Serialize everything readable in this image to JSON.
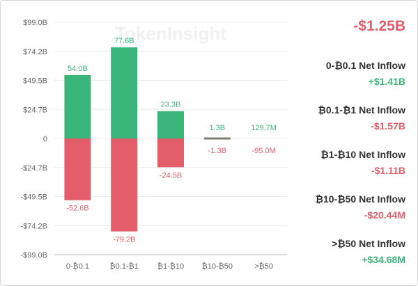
{
  "watermark": "TokenInsight",
  "colors": {
    "inflow": "#3bb67a",
    "outflow": "#e35d6a",
    "net": "#7a7f70",
    "grid": "#ececec",
    "axis_text": "#666666"
  },
  "chart_data": {
    "type": "bar",
    "categories": [
      "0-₿0.1",
      "₿0.1-₿1",
      "₿1-₿10",
      "₿10-₿50",
      ">₿50"
    ],
    "series": [
      {
        "values": [
          54.0,
          77.6,
          23.3,
          1.3,
          0.1297
        ],
        "labels": [
          "54.0B",
          "77.6B",
          "23.3B",
          "1.3B",
          "129.7M"
        ]
      },
      {
        "values": [
          -52.6,
          -79.2,
          -24.5,
          -1.3,
          -0.095
        ],
        "labels": [
          "-52.6B",
          "-79.2B",
          "-24.5B",
          "-1.3B",
          "-95.0M"
        ]
      }
    ],
    "yticks": [
      "$99.0B",
      "$74.2B",
      "$49.5B",
      "$24.7B",
      "0",
      "-$24.7B",
      "-$49.5B",
      "-$74.2B",
      "-$99.0B"
    ],
    "ylim": [
      -99.0,
      99.0
    ],
    "unit": "B",
    "grid": true
  },
  "summary": {
    "total": "-$1.25B",
    "items": [
      {
        "label": "0-₿0.1 Net Inflow",
        "value": "+$1.41B",
        "color": "#3bb67a"
      },
      {
        "label": "₿0.1-₿1 Net Inflow",
        "value": "-$1.57B",
        "color": "#e35d6a"
      },
      {
        "label": "₿1-₿10 Net Inflow",
        "value": "-$1.11B",
        "color": "#e35d6a"
      },
      {
        "label": "₿10-₿50 Net Inflow",
        "value": "-$20.44M",
        "color": "#e35d6a"
      },
      {
        "label": ">₿50 Net Inflow",
        "value": "+$34.68M",
        "color": "#3bb67a"
      }
    ]
  }
}
